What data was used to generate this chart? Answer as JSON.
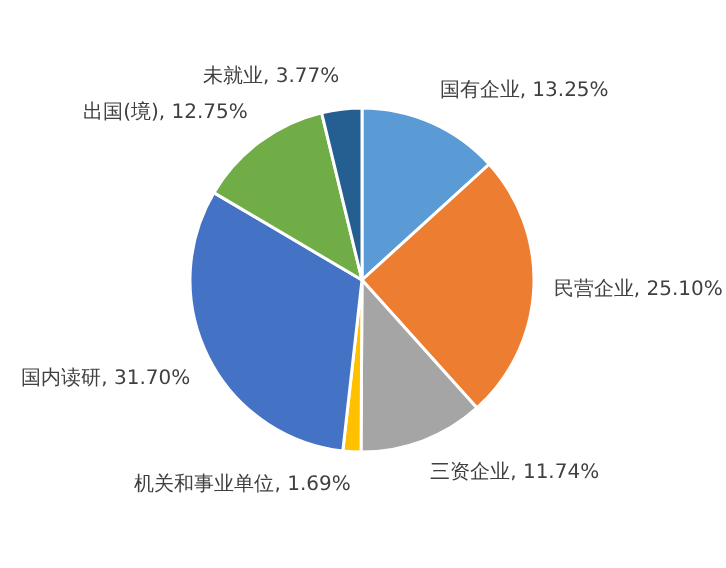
{
  "chart_data": {
    "type": "pie",
    "categories": [
      "国有企业",
      "民营企业",
      "三资企业",
      "机关和事业单位",
      "国内读研",
      "出国(境)",
      "未就业"
    ],
    "values": [
      13.25,
      25.1,
      11.74,
      1.69,
      31.7,
      12.75,
      3.77
    ],
    "value_labels": [
      "13.25%",
      "25.10%",
      "11.74%",
      "1.69%",
      "31.70%",
      "12.75%",
      "3.77%"
    ],
    "colors": [
      "#5b9bd5",
      "#ed7d31",
      "#a5a5a5",
      "#ffc000",
      "#4472c4",
      "#70ad47",
      "#255e91"
    ]
  }
}
